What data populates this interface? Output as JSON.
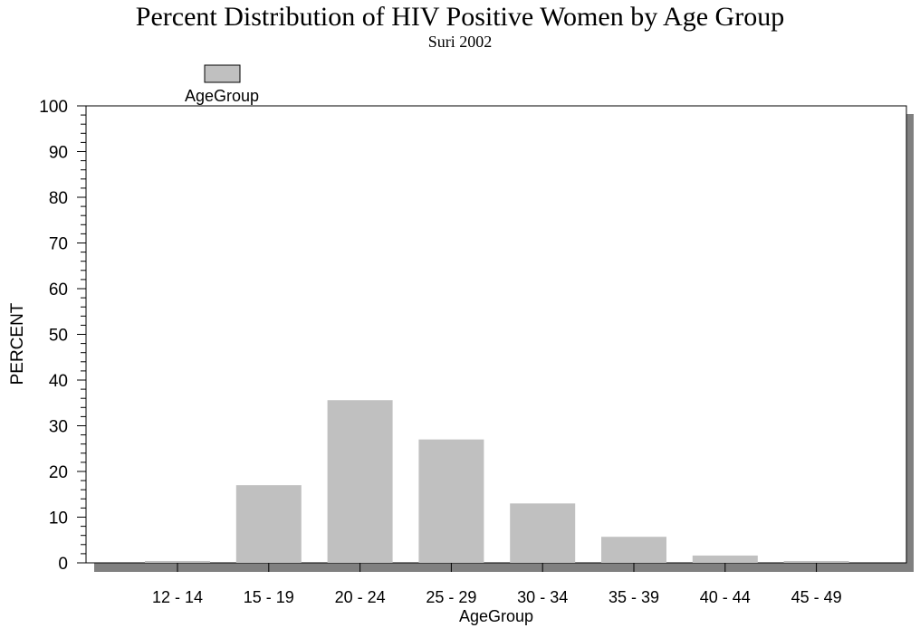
{
  "chart_data": {
    "type": "bar",
    "title": "Percent Distribution of HIV Positive Women by Age Group",
    "subtitle": "Suri 2002",
    "xlabel": "AgeGroup",
    "ylabel": "PERCENT",
    "ylim": [
      0,
      100
    ],
    "yticks": [
      0,
      10,
      20,
      30,
      40,
      50,
      60,
      70,
      80,
      90,
      100
    ],
    "legend": {
      "label": "AgeGroup",
      "placement": "top-left"
    },
    "grid": false,
    "categories": [
      "12 - 14",
      "15 - 19",
      "20 - 24",
      "25 - 29",
      "30 - 34",
      "35 - 39",
      "40 - 44",
      "45 - 49"
    ],
    "values": [
      0.4,
      17.0,
      35.6,
      27.0,
      13.0,
      5.7,
      1.6,
      0.4
    ],
    "colors": {
      "bar": "#c0c0c0",
      "shadow": "#808080",
      "frame": "#000000"
    }
  }
}
